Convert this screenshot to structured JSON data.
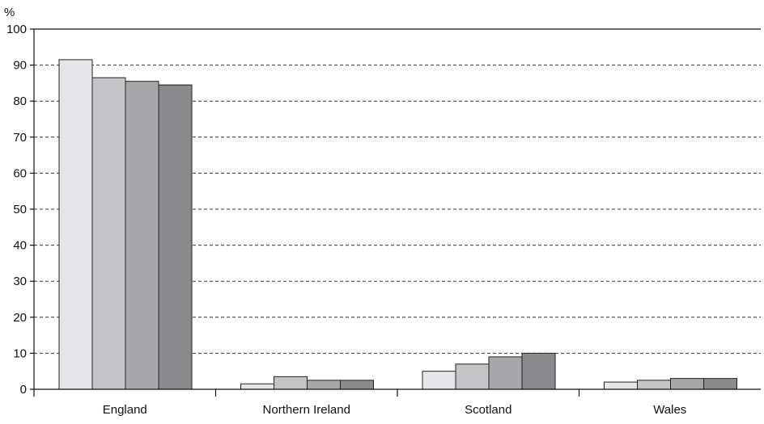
{
  "chart_data": {
    "type": "bar",
    "ylabel": "%",
    "ylim": [
      0,
      100
    ],
    "yticks": [
      0,
      10,
      20,
      30,
      40,
      50,
      60,
      70,
      80,
      90,
      100
    ],
    "grid": true,
    "categories": [
      "England",
      "Northern Ireland",
      "Scotland",
      "Wales"
    ],
    "series": [
      {
        "color": "#e6e6e8",
        "values": [
          91.5,
          1.5,
          5.0,
          2.0
        ]
      },
      {
        "color": "#c4c4c6",
        "values": [
          86.5,
          3.5,
          7.0,
          2.5
        ]
      },
      {
        "color": "#a8a8aa",
        "values": [
          85.5,
          2.5,
          9.0,
          3.0
        ]
      },
      {
        "color": "#8a8a8c",
        "values": [
          84.5,
          2.5,
          10.0,
          3.0
        ]
      }
    ]
  }
}
